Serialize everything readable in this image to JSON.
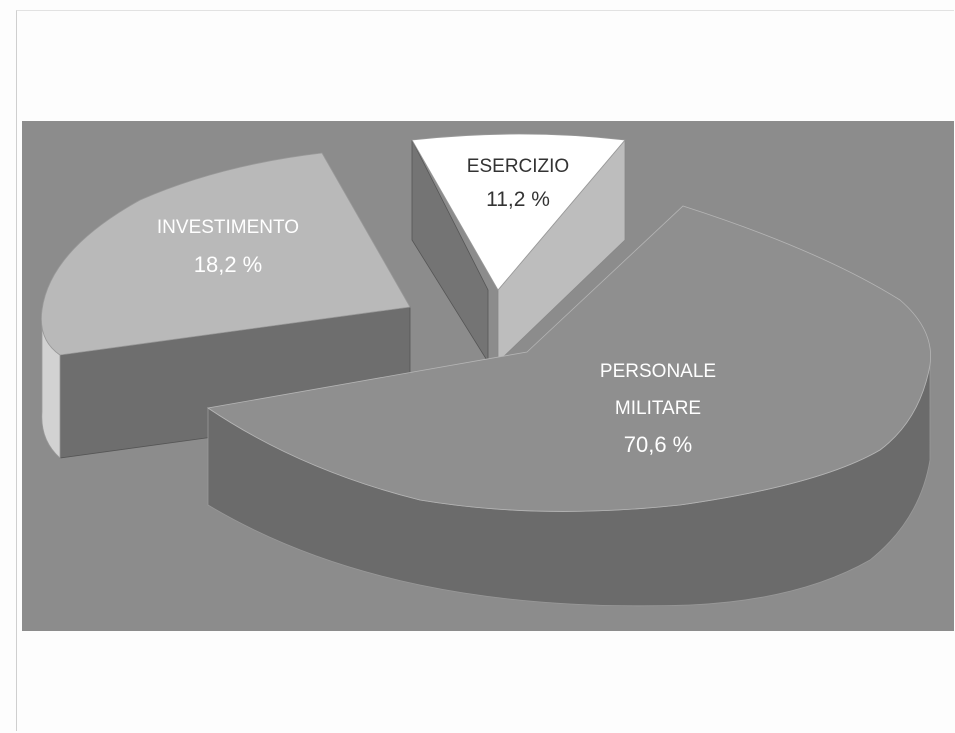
{
  "chart_data": {
    "type": "pie",
    "slices": [
      {
        "label": "Investimento",
        "display": "INVESTIMENTO",
        "value": 18.2,
        "text": "18,2 %",
        "color": "#b9b9b9"
      },
      {
        "label": "Esercizio",
        "display": "ESERCIZIO",
        "value": 11.2,
        "text": "11,2 %",
        "color": "#ffffff"
      },
      {
        "label": "Personale Militare",
        "display_lines": [
          "PERSONALE",
          "MILITARE"
        ],
        "value": 70.6,
        "text": "70,6 %",
        "color": "#8f8f8f"
      }
    ],
    "background_color": "#8c8c8c",
    "style": "3d-exploded"
  }
}
